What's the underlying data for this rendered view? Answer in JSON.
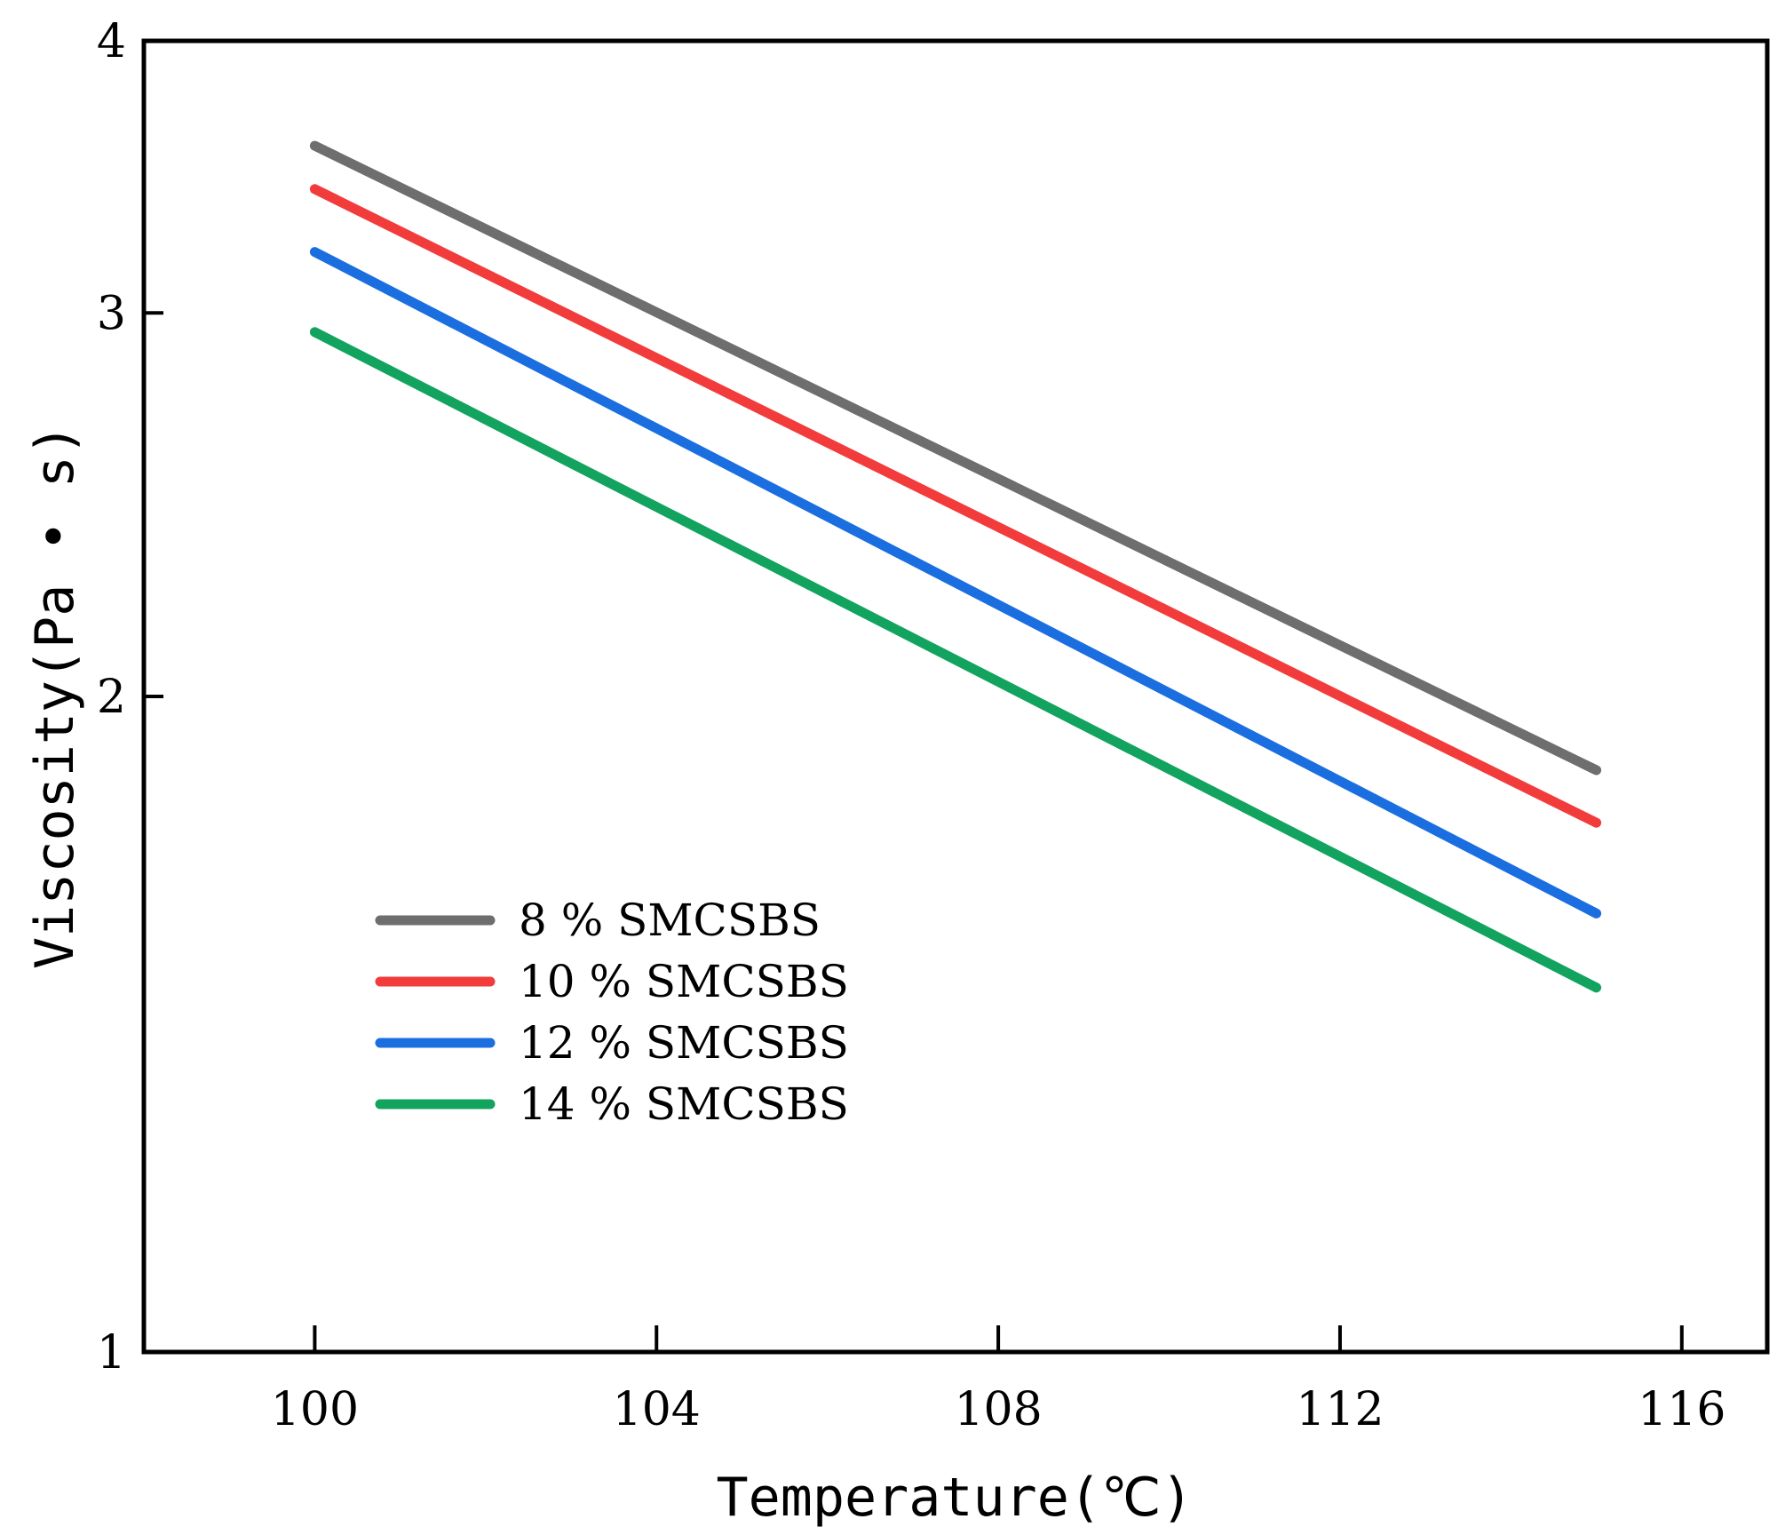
{
  "chart_data": {
    "type": "line",
    "title": "",
    "xlabel": "Temperature(℃)",
    "ylabel": "Viscosity(Pa • s)",
    "xlim": [
      98,
      117
    ],
    "ylim": [
      1,
      4
    ],
    "y_scale": "log",
    "xticks": [
      100,
      104,
      108,
      112,
      116
    ],
    "yticks": [
      1,
      2,
      3,
      4
    ],
    "grid": false,
    "legend_position": "lower-left",
    "series": [
      {
        "name": "8 % SMCSBS",
        "color": "#6e6e6e",
        "x": [
          100,
          115
        ],
        "y": [
          3.58,
          1.85
        ]
      },
      {
        "name": "10 % SMCSBS",
        "color": "#f23c3c",
        "x": [
          100,
          115
        ],
        "y": [
          3.42,
          1.75
        ]
      },
      {
        "name": "12 % SMCSBS",
        "color": "#1a6ee0",
        "x": [
          100,
          115
        ],
        "y": [
          3.2,
          1.59
        ]
      },
      {
        "name": "14 % SMCSBS",
        "color": "#12a35f",
        "x": [
          100,
          115
        ],
        "y": [
          2.94,
          1.47
        ]
      }
    ]
  }
}
